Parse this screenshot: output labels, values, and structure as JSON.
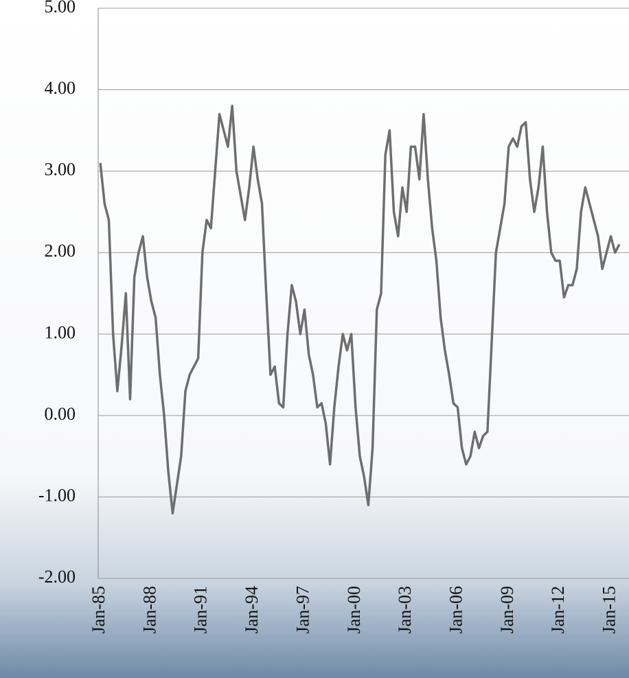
{
  "chart_data": {
    "type": "line",
    "categories": [
      "Jan-85",
      null,
      null,
      null,
      null,
      null,
      null,
      null,
      null,
      null,
      null,
      null,
      "Jan-88",
      null,
      null,
      null,
      null,
      null,
      null,
      null,
      null,
      null,
      null,
      null,
      "Jan-91",
      null,
      null,
      null,
      null,
      null,
      null,
      null,
      null,
      null,
      null,
      null,
      "Jan-94",
      null,
      null,
      null,
      null,
      null,
      null,
      null,
      null,
      null,
      null,
      null,
      "Jan-97",
      null,
      null,
      null,
      null,
      null,
      null,
      null,
      null,
      null,
      null,
      null,
      "Jan-00",
      null,
      null,
      null,
      null,
      null,
      null,
      null,
      null,
      null,
      null,
      null,
      "Jan-03",
      null,
      null,
      null,
      null,
      null,
      null,
      null,
      null,
      null,
      null,
      null,
      "Jan-06",
      null,
      null,
      null,
      null,
      null,
      null,
      null,
      null,
      null,
      null,
      null,
      "Jan-09",
      null,
      null,
      null,
      null,
      null,
      null,
      null,
      null,
      null,
      null,
      null,
      "Jan-12",
      null,
      null,
      null,
      null,
      null,
      null,
      null,
      null,
      null,
      null,
      null,
      "Jan-15",
      null,
      null
    ],
    "values": [
      3.1,
      2.6,
      2.4,
      1.0,
      0.3,
      0.85,
      1.5,
      0.2,
      1.7,
      2.0,
      2.2,
      1.7,
      1.4,
      1.2,
      0.5,
      0.0,
      -0.7,
      -1.2,
      -0.85,
      -0.5,
      0.3,
      0.5,
      0.6,
      0.7,
      2.0,
      2.4,
      2.3,
      3.0,
      3.7,
      3.5,
      3.3,
      3.8,
      3.0,
      2.7,
      2.4,
      2.8,
      3.3,
      2.9,
      2.6,
      1.5,
      0.5,
      0.6,
      0.15,
      0.1,
      1.0,
      1.6,
      1.4,
      1.0,
      1.3,
      0.75,
      0.5,
      0.1,
      0.15,
      -0.1,
      -0.6,
      0.1,
      0.6,
      1.0,
      0.8,
      1.0,
      0.1,
      -0.5,
      -0.75,
      -1.1,
      -0.4,
      1.3,
      1.5,
      3.2,
      3.5,
      2.5,
      2.2,
      2.8,
      2.5,
      3.3,
      3.3,
      2.9,
      3.7,
      2.9,
      2.3,
      1.9,
      1.2,
      0.8,
      0.5,
      0.15,
      0.1,
      -0.4,
      -0.6,
      -0.5,
      -0.2,
      -0.4,
      -0.25,
      -0.2,
      0.9,
      2.0,
      2.3,
      2.6,
      3.3,
      3.4,
      3.3,
      3.55,
      3.6,
      2.9,
      2.5,
      2.8,
      3.3,
      2.5,
      2.0,
      1.9,
      1.9,
      1.45,
      1.6,
      1.6,
      1.8,
      2.5,
      2.8,
      2.6,
      2.4,
      2.2,
      1.8,
      2.0,
      2.2,
      2.0,
      2.1
    ],
    "color": "#6e6e6e",
    "ylim": [
      -2,
      5
    ],
    "yticks": [
      {
        "value": -2,
        "label": "-2.00"
      },
      {
        "value": -1,
        "label": "-1.00"
      },
      {
        "value": 0,
        "label": "0.00"
      },
      {
        "value": 1,
        "label": "1.00"
      },
      {
        "value": 2,
        "label": "2.00"
      },
      {
        "value": 3,
        "label": "3.00"
      },
      {
        "value": 4,
        "label": "4.00"
      },
      {
        "value": 5,
        "label": "5.00"
      }
    ],
    "grid": true
  }
}
